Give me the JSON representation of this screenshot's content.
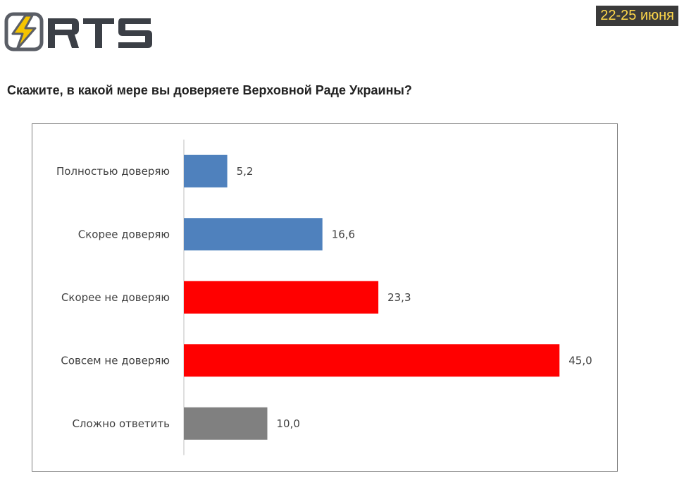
{
  "header": {
    "logo_text": "RTS",
    "date": "22-25 июня"
  },
  "question": "Скажите, в какой мере вы доверяете Верховной Раде Украины?",
  "chart_data": {
    "type": "bar",
    "orientation": "horizontal",
    "title": "Скажите, в какой мере вы доверяете Верховной Раде Украины?",
    "categories": [
      "Полностью доверяю",
      "Скорее доверяю",
      "Скорее не доверяю",
      "Совсем не доверяю",
      "Сложно ответить"
    ],
    "values": [
      5.2,
      16.6,
      23.3,
      45.0,
      10.0
    ],
    "value_labels": [
      "5,2",
      "16,6",
      "23,3",
      "45,0",
      "10,0"
    ],
    "colors": [
      "#4f81bd",
      "#4f81bd",
      "#ff0000",
      "#ff0000",
      "#808080"
    ],
    "xlim": [
      0,
      50
    ],
    "grid": false,
    "legend": "none"
  }
}
